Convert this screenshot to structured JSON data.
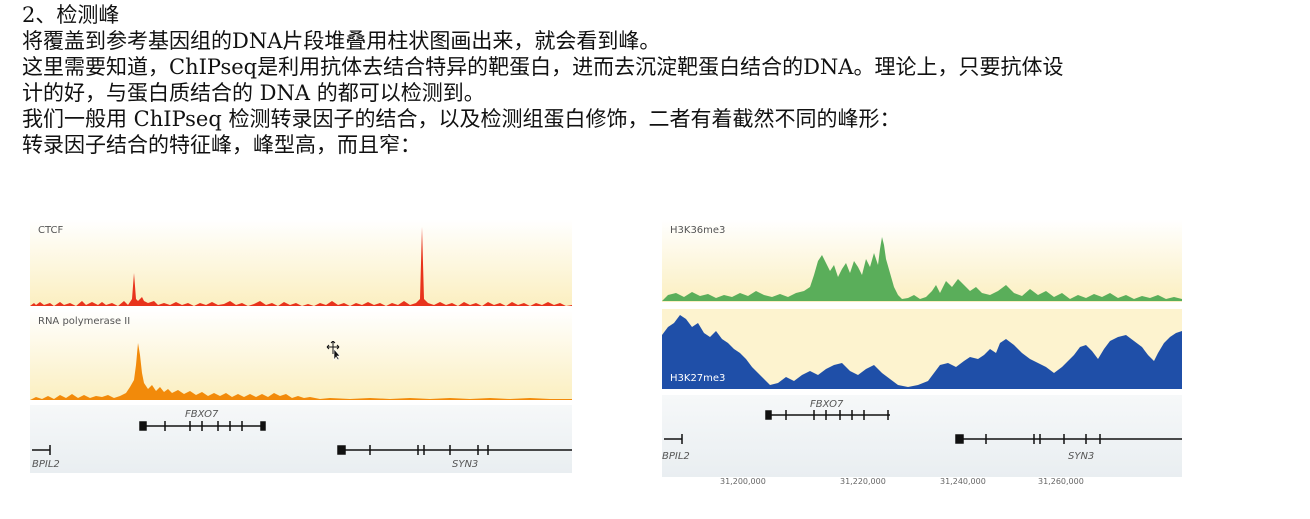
{
  "text": {
    "heading": "2、检测峰",
    "line1": "将覆盖到参考基因组的DNA片段堆叠用柱状图画出来，就会看到峰。",
    "line2": "这里需要知道，ChIPseq是利用抗体去结合特异的靶蛋白，进而去沉淀靶蛋白结合的DNA。理论上，只要抗体设",
    "line3": "计的好，与蛋白质结合的 DNA 的都可以检测到。",
    "line4": "我们一般用 ChIPseq 检测转录因子的结合，以及检测组蛋白修饰，二者有着截然不同的峰形：",
    "line5": "转录因子结合的特征峰，峰型高，而且窄："
  },
  "left_figure": {
    "track1_label": "CTCF",
    "track2_label": "RNA polymerase II",
    "gene_top": "FBXO7",
    "gene_left": "BPIL2",
    "gene_right": "SYN3",
    "colors": {
      "ctcf": "#e8331c",
      "polII": "#f28a0a",
      "bg": "#fdf6d6"
    }
  },
  "right_figure": {
    "track1_label": "H3K36me3",
    "track2_label": "H3K27me3",
    "gene_top": "FBXO7",
    "gene_left": "BPIL2",
    "gene_right": "SYN3",
    "axis_ticks": [
      "31,200,000",
      "31,220,000",
      "31,240,000",
      "31,260,000"
    ],
    "colors": {
      "h3k36": "#5aae5a",
      "h3k27": "#1f4fa8",
      "bg": "#fdf6d6"
    }
  }
}
